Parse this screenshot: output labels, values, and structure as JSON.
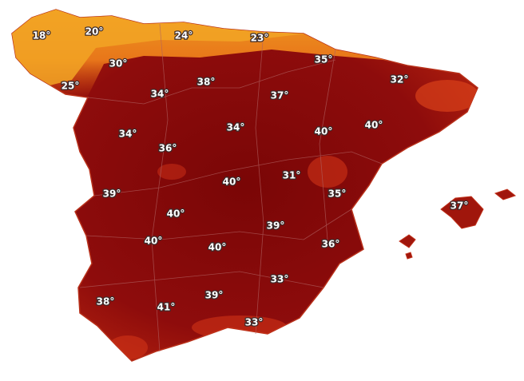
{
  "map": {
    "labels": [
      "18°",
      "20°",
      "24°",
      "23°",
      "35°",
      "32°",
      "30°",
      "25°",
      "38°",
      "34°",
      "37°",
      "34°",
      "36°",
      "34°",
      "40°",
      "40°",
      "31°",
      "40°",
      "35°",
      "39°",
      "40°",
      "37°",
      "39°",
      "40°",
      "40°",
      "36°",
      "33°",
      "38°",
      "41°",
      "39°",
      "33°"
    ]
  }
}
